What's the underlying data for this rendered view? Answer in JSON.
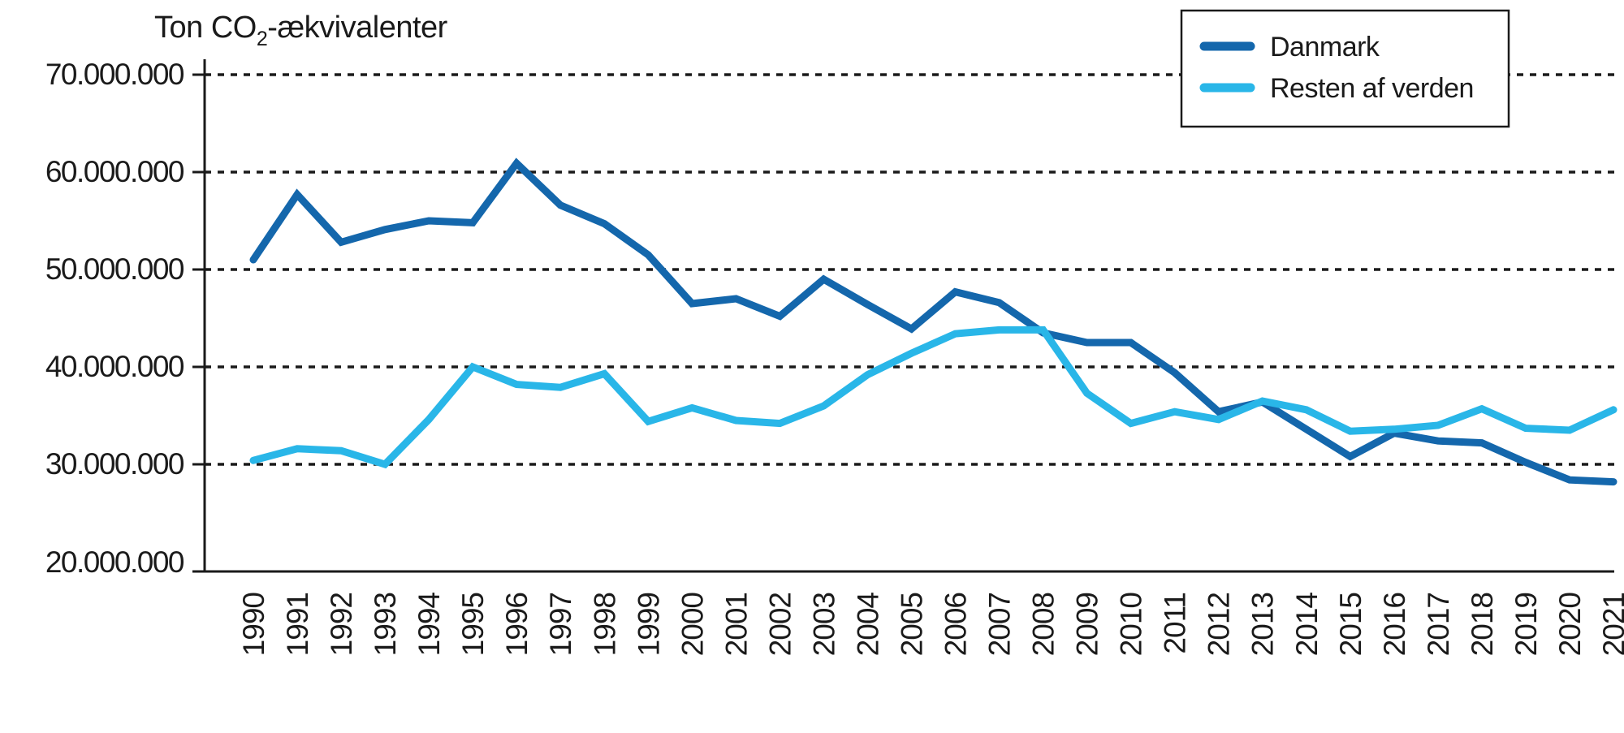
{
  "chart_data": {
    "type": "line",
    "title": {
      "prefix": "Ton CO",
      "subscript": "2",
      "suffix": "-ækvivalenter"
    },
    "x_label": "",
    "y_label": "Ton CO2-ækvivalenter",
    "x": [
      "1990",
      "1991",
      "1992",
      "1993",
      "1994",
      "1995",
      "1996",
      "1997",
      "1998",
      "1999",
      "2000",
      "2001",
      "2002",
      "2003",
      "2004",
      "2005",
      "2006",
      "2007",
      "2008",
      "2009",
      "2010",
      "2011",
      "2012",
      "2013",
      "2014",
      "2015",
      "2016",
      "2017",
      "2018",
      "2019",
      "2020",
      "2021"
    ],
    "series": [
      {
        "name": "Danmark",
        "color": "#1467AC",
        "values": [
          51000000,
          57700000,
          52800000,
          54100000,
          55000000,
          54800000,
          60900000,
          56600000,
          54700000,
          51500000,
          46500000,
          47000000,
          45200000,
          49000000,
          46400000,
          43900000,
          47700000,
          46600000,
          43500000,
          42500000,
          42500000,
          39400000,
          35400000,
          36400000,
          33600000,
          30800000,
          33200000,
          32400000,
          32200000,
          30200000,
          28400000,
          28200000
        ]
      },
      {
        "name": "Resten af verden",
        "color": "#29B6E8",
        "values": [
          30400000,
          31600000,
          31400000,
          30000000,
          34600000,
          40000000,
          38200000,
          37900000,
          39300000,
          34400000,
          35800000,
          34500000,
          34200000,
          36000000,
          39200000,
          41400000,
          43400000,
          43800000,
          43800000,
          37300000,
          34200000,
          35400000,
          34600000,
          36500000,
          35600000,
          33400000,
          33600000,
          34000000,
          35700000,
          33700000,
          33500000,
          35600000
        ]
      }
    ],
    "ylim": [
      20000000,
      70000000
    ],
    "ytick_step": 10000000,
    "ytick_labels": [
      "20.000.000",
      "30.000.000",
      "40.000.000",
      "50.000.000",
      "60.000.000",
      "70.000.000"
    ],
    "grid": "horizontal-dashed",
    "legend_position": "top-right",
    "axis_color": "#1a1a1a"
  }
}
